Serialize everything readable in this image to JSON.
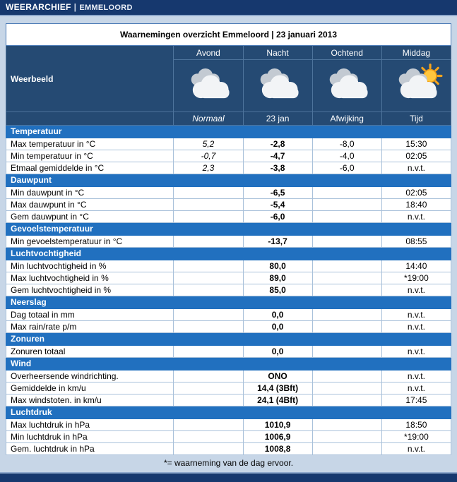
{
  "topbar": {
    "title": "WEERARCHIEF",
    "separator": "|",
    "location": "EMMELOORD"
  },
  "table": {
    "title": "Waarnemingen overzicht Emmeloord | 23 januari 2013",
    "weerbeeld_label": "Weerbeeld",
    "periods": [
      {
        "label": "Avond",
        "icon": "cloudy"
      },
      {
        "label": "Nacht",
        "icon": "cloudy"
      },
      {
        "label": "Ochtend",
        "icon": "cloudy"
      },
      {
        "label": "Middag",
        "icon": "partly-sunny"
      }
    ],
    "subheaders": [
      "Normaal",
      "23 jan",
      "Afwijking",
      "Tijd"
    ],
    "sections": [
      {
        "name": "Temperatuur",
        "rows": [
          {
            "label": "Max temperatuur in °C",
            "normaal": "5,2",
            "value": "-2,8",
            "afwijking": "-8,0",
            "tijd": "15:30"
          },
          {
            "label": "Min temperatuur in °C",
            "normaal": "-0,7",
            "value": "-4,7",
            "afwijking": "-4,0",
            "tijd": "02:05"
          },
          {
            "label": "Etmaal gemiddelde in °C",
            "normaal": "2,3",
            "value": "-3,8",
            "afwijking": "-6,0",
            "tijd": "n.v.t."
          }
        ]
      },
      {
        "name": "Dauwpunt",
        "rows": [
          {
            "label": "Min dauwpunt in °C",
            "normaal": "",
            "value": "-6,5",
            "afwijking": "",
            "tijd": "02:05"
          },
          {
            "label": "Max dauwpunt in °C",
            "normaal": "",
            "value": "-5,4",
            "afwijking": "",
            "tijd": "18:40"
          },
          {
            "label": "Gem dauwpunt in °C",
            "normaal": "",
            "value": "-6,0",
            "afwijking": "",
            "tijd": "n.v.t."
          }
        ]
      },
      {
        "name": "Gevoelstemperatuur",
        "rows": [
          {
            "label": "Min gevoelstemperatuur in °C",
            "normaal": "",
            "value": "-13,7",
            "afwijking": "",
            "tijd": "08:55"
          }
        ]
      },
      {
        "name": "Luchtvochtigheid",
        "rows": [
          {
            "label": "Min luchtvochtigheid in %",
            "normaal": "",
            "value": "80,0",
            "afwijking": "",
            "tijd": "14:40"
          },
          {
            "label": "Max luchtvochtigheid in %",
            "normaal": "",
            "value": "89,0",
            "afwijking": "",
            "tijd": "*19:00"
          },
          {
            "label": "Gem luchtvochtigheid in %",
            "normaal": "",
            "value": "85,0",
            "afwijking": "",
            "tijd": "n.v.t."
          }
        ]
      },
      {
        "name": "Neerslag",
        "rows": [
          {
            "label": "Dag totaal in mm",
            "normaal": "",
            "value": "0,0",
            "afwijking": "",
            "tijd": "n.v.t."
          },
          {
            "label": "Max rain/rate p/m",
            "normaal": "",
            "value": "0,0",
            "afwijking": "",
            "tijd": "n.v.t."
          }
        ]
      },
      {
        "name": "Zonuren",
        "rows": [
          {
            "label": "Zonuren totaal",
            "normaal": "",
            "value": "0,0",
            "afwijking": "",
            "tijd": "n.v.t."
          }
        ]
      },
      {
        "name": "Wind",
        "rows": [
          {
            "label": "Overheersende windrichting.",
            "normaal": "",
            "value": "ONO",
            "afwijking": "",
            "tijd": "n.v.t."
          },
          {
            "label": "Gemiddelde in km/u",
            "normaal": "",
            "value": "14,4 (3Bft)",
            "afwijking": "",
            "tijd": "n.v.t."
          },
          {
            "label": "Max windstoten. in km/u",
            "normaal": "",
            "value": "24,1 (4Bft)",
            "afwijking": "",
            "tijd": "17:45"
          }
        ]
      },
      {
        "name": "Luchtdruk",
        "rows": [
          {
            "label": "Max luchtdruk in hPa",
            "normaal": "",
            "value": "1010,9",
            "afwijking": "",
            "tijd": "18:50"
          },
          {
            "label": "Min luchtdruk in hPa",
            "normaal": "",
            "value": "1006,9",
            "afwijking": "",
            "tijd": "*19:00"
          },
          {
            "label": "Gem. luchtdruk in hPa",
            "normaal": "",
            "value": "1008,8",
            "afwijking": "",
            "tijd": "n.v.t."
          }
        ]
      }
    ],
    "footnote": "*= waarneming van de dag ervoor."
  },
  "colors": {
    "topbar_bg": "#16386e",
    "header_bg": "#254a73",
    "section_bg": "#2170bf",
    "page_bg": "#c7d6e7",
    "table_border": "#4a7ab5",
    "afwijking_text": "#2e4fc0",
    "sun": "#ffc63d",
    "sun_rays": "#f6a41c"
  }
}
